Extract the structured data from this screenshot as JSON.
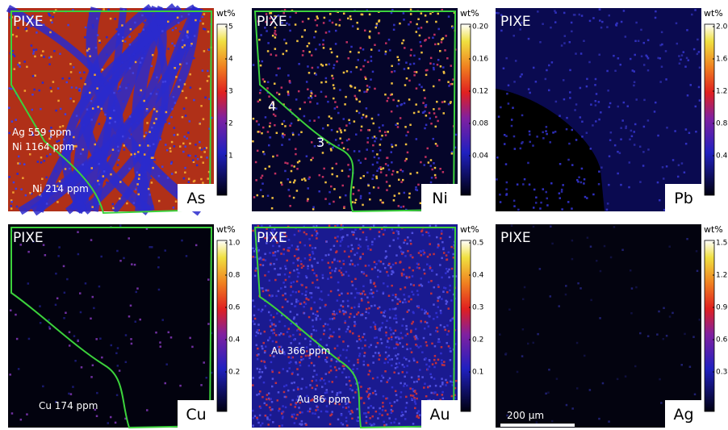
{
  "panels": [
    {
      "label": "PIXE",
      "element": "As",
      "unit": "wt%",
      "colorbar_ticks": [
        "5",
        "4",
        "3",
        "2",
        "1"
      ],
      "annotations": [
        "Ag 559 ppm",
        "Ni 1164 ppm",
        "Ni 214 ppm"
      ]
    },
    {
      "label": "PIXE",
      "element": "Ni",
      "unit": "wt%",
      "colorbar_ticks": [
        "0.20",
        "0.16",
        "0.12",
        "0.08",
        "0.04"
      ],
      "annotations": [
        "4",
        "3"
      ]
    },
    {
      "label": "PIXE",
      "element": "Pb",
      "unit": "wt%",
      "colorbar_ticks": [
        "2.0",
        "1.6",
        "1.2",
        "0.8",
        "0.4"
      ],
      "annotations": []
    },
    {
      "label": "PIXE",
      "element": "Cu",
      "unit": "wt%",
      "colorbar_ticks": [
        "1.0",
        "0.8",
        "0.6",
        "0.4",
        "0.2"
      ],
      "annotations": [
        "Cu 174 ppm"
      ]
    },
    {
      "label": "PIXE",
      "element": "Au",
      "unit": "wt%",
      "colorbar_ticks": [
        "0.5",
        "0.4",
        "0.3",
        "0.2",
        "0.1"
      ],
      "annotations": [
        "Au 366 ppm",
        "Au 86 ppm"
      ]
    },
    {
      "label": "PIXE",
      "element": "Ag",
      "unit": "wt%",
      "colorbar_ticks": [
        "1.5",
        "1.2",
        "0.9",
        "0.6",
        "0.3"
      ],
      "annotations": []
    }
  ],
  "scale_bar": "200 µm"
}
